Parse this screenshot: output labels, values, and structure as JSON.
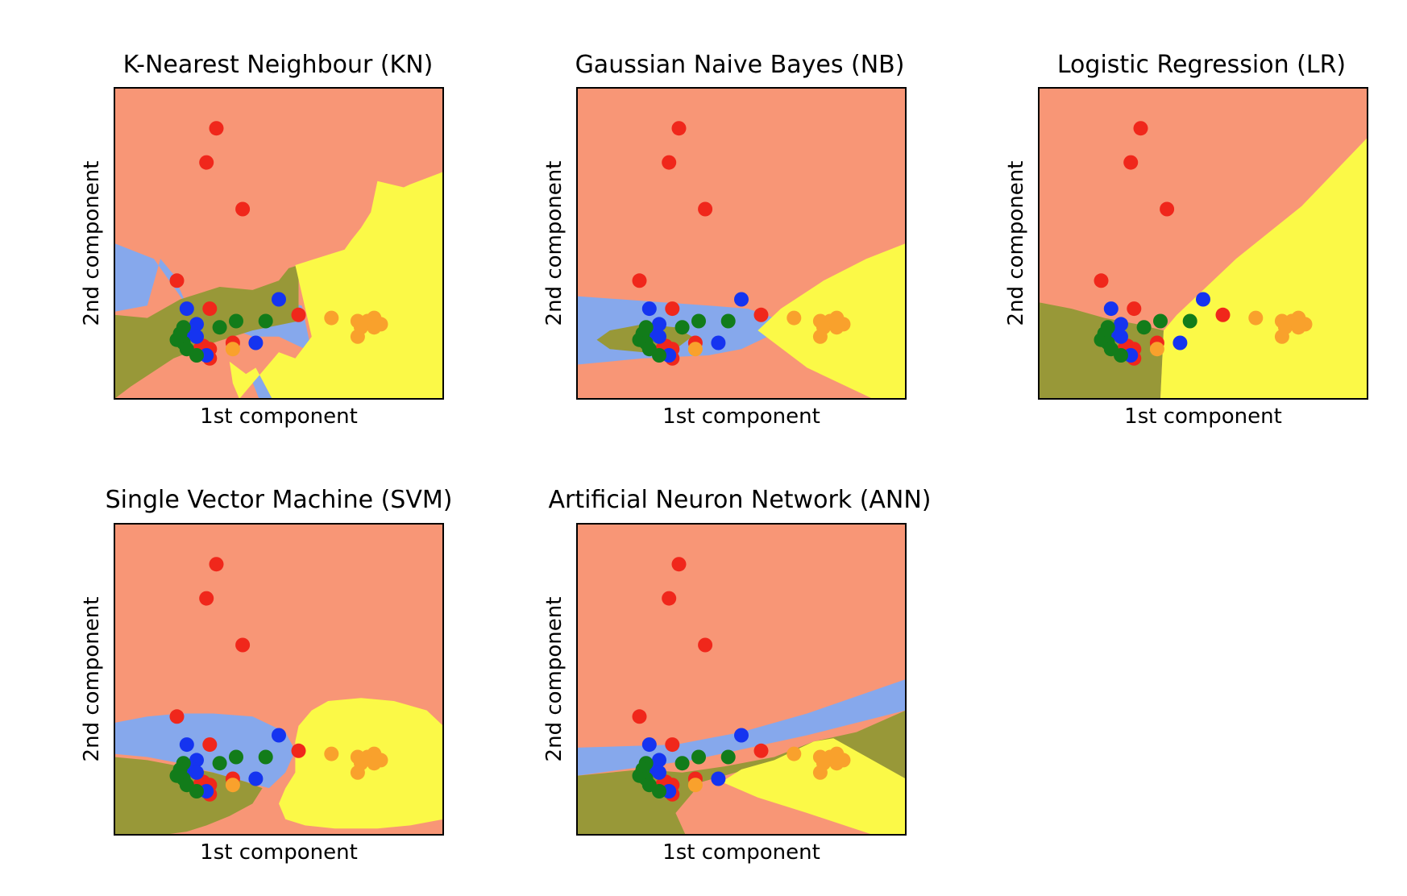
{
  "colors": {
    "region_red": "#f89676",
    "region_blue": "#86a8ec",
    "region_olive": "#989838",
    "region_yellow": "#fbf947",
    "point_red": "#f0271b",
    "point_blue": "#1534f0",
    "point_green": "#127c1a",
    "point_orange": "#f9a12c"
  },
  "points": [
    {
      "x": 0.31,
      "y": 0.87,
      "class": "red"
    },
    {
      "x": 0.28,
      "y": 0.76,
      "class": "red"
    },
    {
      "x": 0.39,
      "y": 0.61,
      "class": "red"
    },
    {
      "x": 0.19,
      "y": 0.38,
      "class": "red"
    },
    {
      "x": 0.29,
      "y": 0.29,
      "class": "red"
    },
    {
      "x": 0.56,
      "y": 0.27,
      "class": "red"
    },
    {
      "x": 0.36,
      "y": 0.18,
      "class": "red"
    },
    {
      "x": 0.29,
      "y": 0.16,
      "class": "red"
    },
    {
      "x": 0.27,
      "y": 0.17,
      "class": "red"
    },
    {
      "x": 0.25,
      "y": 0.15,
      "class": "red"
    },
    {
      "x": 0.28,
      "y": 0.15,
      "class": "red"
    },
    {
      "x": 0.29,
      "y": 0.13,
      "class": "red"
    },
    {
      "x": 0.26,
      "y": 0.16,
      "class": "red"
    },
    {
      "x": 0.22,
      "y": 0.29,
      "class": "blue"
    },
    {
      "x": 0.5,
      "y": 0.32,
      "class": "blue"
    },
    {
      "x": 0.25,
      "y": 0.24,
      "class": "blue"
    },
    {
      "x": 0.23,
      "y": 0.22,
      "class": "blue"
    },
    {
      "x": 0.24,
      "y": 0.21,
      "class": "blue"
    },
    {
      "x": 0.25,
      "y": 0.2,
      "class": "blue"
    },
    {
      "x": 0.43,
      "y": 0.18,
      "class": "blue"
    },
    {
      "x": 0.28,
      "y": 0.14,
      "class": "blue"
    },
    {
      "x": 0.21,
      "y": 0.23,
      "class": "green"
    },
    {
      "x": 0.2,
      "y": 0.21,
      "class": "green"
    },
    {
      "x": 0.19,
      "y": 0.19,
      "class": "green"
    },
    {
      "x": 0.21,
      "y": 0.18,
      "class": "green"
    },
    {
      "x": 0.32,
      "y": 0.23,
      "class": "green"
    },
    {
      "x": 0.37,
      "y": 0.25,
      "class": "green"
    },
    {
      "x": 0.46,
      "y": 0.25,
      "class": "green"
    },
    {
      "x": 0.25,
      "y": 0.14,
      "class": "green"
    },
    {
      "x": 0.22,
      "y": 0.16,
      "class": "green"
    },
    {
      "x": 0.66,
      "y": 0.26,
      "class": "orange"
    },
    {
      "x": 0.74,
      "y": 0.25,
      "class": "orange"
    },
    {
      "x": 0.77,
      "y": 0.25,
      "class": "orange"
    },
    {
      "x": 0.79,
      "y": 0.26,
      "class": "orange"
    },
    {
      "x": 0.81,
      "y": 0.24,
      "class": "orange"
    },
    {
      "x": 0.75,
      "y": 0.23,
      "class": "orange"
    },
    {
      "x": 0.79,
      "y": 0.23,
      "class": "orange"
    },
    {
      "x": 0.74,
      "y": 0.2,
      "class": "orange"
    },
    {
      "x": 0.36,
      "y": 0.16,
      "class": "orange"
    }
  ],
  "chart_data": [
    {
      "type": "scatter",
      "title": "K-Nearest Neighbour (KN)",
      "xlabel": "1st component",
      "ylabel": "2nd component",
      "xlim": [
        0,
        1
      ],
      "ylim": [
        0,
        1
      ],
      "regions": [
        {
          "class": "blue",
          "polygon": [
            [
              0,
              0.2
            ],
            [
              0,
              0.5
            ],
            [
              0.12,
              0.45
            ],
            [
              0.22,
              0.3
            ],
            [
              0.3,
              0.25
            ],
            [
              0.42,
              0.2
            ],
            [
              0.5,
              0.2
            ],
            [
              0.6,
              0.15
            ],
            [
              0.57,
              0.3
            ],
            [
              0.42,
              0.33
            ],
            [
              0.35,
              0.35
            ],
            [
              0.3,
              0.3
            ],
            [
              0.22,
              0.3
            ],
            [
              0.18,
              0.4
            ],
            [
              0.14,
              0.45
            ],
            [
              0.1,
              0.3
            ],
            [
              0,
              0.28
            ]
          ]
        },
        {
          "class": "blue",
          "polygon": [
            [
              0.41,
              0.08
            ],
            [
              0.44,
              0
            ],
            [
              0.48,
              0
            ],
            [
              0.43,
              0.1
            ]
          ]
        },
        {
          "class": "olive",
          "polygon": [
            [
              0,
              0
            ],
            [
              0,
              0.27
            ],
            [
              0.1,
              0.26
            ],
            [
              0.2,
              0.32
            ],
            [
              0.32,
              0.36
            ],
            [
              0.42,
              0.35
            ],
            [
              0.5,
              0.38
            ],
            [
              0.53,
              0.42
            ],
            [
              0.56,
              0.43
            ],
            [
              0.56,
              0.25
            ],
            [
              0.42,
              0.22
            ],
            [
              0.3,
              0.18
            ],
            [
              0.18,
              0.13
            ],
            [
              0.05,
              0.04
            ]
          ]
        },
        {
          "class": "yellow",
          "polygon": [
            [
              0.55,
              0.43
            ],
            [
              0.7,
              0.48
            ],
            [
              0.72,
              0.51
            ],
            [
              0.75,
              0.55
            ],
            [
              0.78,
              0.6
            ],
            [
              0.8,
              0.7
            ],
            [
              0.88,
              0.68
            ],
            [
              0.9,
              0.69
            ],
            [
              1,
              0.73
            ],
            [
              1,
              0
            ],
            [
              0.48,
              0
            ],
            [
              0.43,
              0.1
            ],
            [
              0.4,
              0.08
            ],
            [
              0.35,
              0.12
            ],
            [
              0.36,
              0.05
            ],
            [
              0.38,
              0
            ],
            [
              0.5,
              0.15
            ],
            [
              0.55,
              0.13
            ],
            [
              0.6,
              0.2
            ]
          ]
        }
      ]
    },
    {
      "type": "scatter",
      "title": "Gaussian Naive Bayes (NB)",
      "xlabel": "1st component",
      "ylabel": "2nd component",
      "xlim": [
        0,
        1
      ],
      "ylim": [
        0,
        1
      ],
      "regions": [
        {
          "class": "blue",
          "polygon": [
            [
              0,
              0.33
            ],
            [
              0.4,
              0.3
            ],
            [
              0.52,
              0.29
            ],
            [
              0.6,
              0.26
            ],
            [
              0.58,
              0.2
            ],
            [
              0.5,
              0.16
            ],
            [
              0.4,
              0.14
            ],
            [
              0.2,
              0.13
            ],
            [
              0,
              0.11
            ]
          ]
        },
        {
          "class": "olive",
          "polygon": [
            [
              0.06,
              0.19
            ],
            [
              0.1,
              0.22
            ],
            [
              0.2,
              0.24
            ],
            [
              0.3,
              0.23
            ],
            [
              0.35,
              0.2
            ],
            [
              0.3,
              0.16
            ],
            [
              0.2,
              0.15
            ],
            [
              0.1,
              0.16
            ]
          ]
        },
        {
          "class": "yellow",
          "polygon": [
            [
              0.55,
              0.22
            ],
            [
              0.62,
              0.29
            ],
            [
              0.75,
              0.38
            ],
            [
              0.88,
              0.45
            ],
            [
              1,
              0.5
            ],
            [
              1,
              0
            ],
            [
              0.9,
              0
            ],
            [
              0.7,
              0.1
            ]
          ]
        }
      ]
    },
    {
      "type": "scatter",
      "title": "Logistic Regression (LR)",
      "xlabel": "1st component",
      "ylabel": "2nd component",
      "xlim": [
        0,
        1
      ],
      "ylim": [
        0,
        1
      ],
      "regions": [
        {
          "class": "olive",
          "polygon": [
            [
              0,
              0
            ],
            [
              0,
              0.31
            ],
            [
              0.1,
              0.29
            ],
            [
              0.2,
              0.26
            ],
            [
              0.3,
              0.24
            ],
            [
              0.38,
              0.22
            ],
            [
              0.37,
              0
            ]
          ]
        },
        {
          "class": "yellow",
          "polygon": [
            [
              0.37,
              0
            ],
            [
              0.38,
              0.22
            ],
            [
              0.42,
              0.27
            ],
            [
              0.6,
              0.45
            ],
            [
              0.8,
              0.62
            ],
            [
              1,
              0.84
            ],
            [
              1,
              0
            ]
          ]
        }
      ]
    },
    {
      "type": "scatter",
      "title": "Single Vector Machine (SVM)",
      "xlabel": "1st component",
      "ylabel": "2nd component",
      "xlim": [
        0,
        1
      ],
      "ylim": [
        0,
        1
      ],
      "regions": [
        {
          "class": "blue",
          "polygon": [
            [
              0,
              0.36
            ],
            [
              0.1,
              0.38
            ],
            [
              0.2,
              0.39
            ],
            [
              0.3,
              0.39
            ],
            [
              0.42,
              0.38
            ],
            [
              0.52,
              0.33
            ],
            [
              0.55,
              0.27
            ],
            [
              0.52,
              0.2
            ],
            [
              0.47,
              0.15
            ],
            [
              0.4,
              0.17
            ],
            [
              0.3,
              0.2
            ],
            [
              0.2,
              0.23
            ],
            [
              0.1,
              0.25
            ],
            [
              0,
              0.26
            ]
          ]
        },
        {
          "class": "olive",
          "polygon": [
            [
              0,
              0
            ],
            [
              0,
              0.25
            ],
            [
              0.1,
              0.24
            ],
            [
              0.2,
              0.22
            ],
            [
              0.3,
              0.2
            ],
            [
              0.4,
              0.17
            ],
            [
              0.45,
              0.15
            ],
            [
              0.42,
              0.1
            ],
            [
              0.35,
              0.06
            ],
            [
              0.28,
              0.03
            ],
            [
              0.22,
              0.01
            ],
            [
              0.15,
              0
            ]
          ]
        },
        {
          "class": "yellow",
          "polygon": [
            [
              0.55,
              0.2
            ],
            [
              0.52,
              0.15
            ],
            [
              0.5,
              0.1
            ],
            [
              0.52,
              0.05
            ],
            [
              0.58,
              0.03
            ],
            [
              0.67,
              0.02
            ],
            [
              0.8,
              0.02
            ],
            [
              0.9,
              0.03
            ],
            [
              1,
              0.05
            ],
            [
              1,
              0.35
            ],
            [
              0.95,
              0.4
            ],
            [
              0.85,
              0.43
            ],
            [
              0.75,
              0.44
            ],
            [
              0.65,
              0.43
            ],
            [
              0.6,
              0.4
            ],
            [
              0.56,
              0.35
            ],
            [
              0.55,
              0.3
            ]
          ]
        }
      ]
    },
    {
      "type": "scatter",
      "title": "Artificial Neuron Network (ANN)",
      "xlabel": "1st component",
      "ylabel": "2nd component",
      "xlim": [
        0,
        1
      ],
      "ylim": [
        0,
        1
      ],
      "regions": [
        {
          "class": "blue",
          "polygon": [
            [
              0,
              0.19
            ],
            [
              0.35,
              0.24
            ],
            [
              0.7,
              0.32
            ],
            [
              1,
              0.4
            ],
            [
              1,
              0.5
            ],
            [
              0.7,
              0.39
            ],
            [
              0.5,
              0.33
            ],
            [
              0.3,
              0.29
            ],
            [
              0,
              0.28
            ]
          ]
        },
        {
          "class": "olive",
          "polygon": [
            [
              0,
              0
            ],
            [
              0,
              0.19
            ],
            [
              0.2,
              0.21
            ],
            [
              0.32,
              0.2
            ],
            [
              0.45,
              0.22
            ],
            [
              0.6,
              0.25
            ],
            [
              0.72,
              0.3
            ],
            [
              0.85,
              0.33
            ],
            [
              1,
              0.4
            ],
            [
              1,
              0.18
            ],
            [
              0.88,
              0.22
            ],
            [
              0.78,
              0.3
            ],
            [
              0.55,
              0.22
            ],
            [
              0.38,
              0.17
            ],
            [
              0.3,
              0.07
            ],
            [
              0.33,
              0
            ]
          ]
        },
        {
          "class": "yellow",
          "polygon": [
            [
              0.44,
              0.17
            ],
            [
              0.5,
              0.21
            ],
            [
              0.6,
              0.24
            ],
            [
              0.72,
              0.3
            ],
            [
              0.78,
              0.31
            ],
            [
              1,
              0.18
            ],
            [
              1,
              0
            ],
            [
              0.9,
              0
            ],
            [
              0.7,
              0.07
            ],
            [
              0.55,
              0.12
            ]
          ]
        }
      ]
    }
  ]
}
